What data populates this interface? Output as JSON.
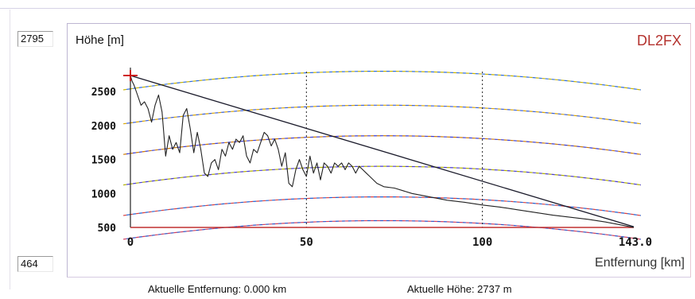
{
  "y_max_box": "2795",
  "y_min_box": "464",
  "status": {
    "distance_text": "Aktuelle Entfernung: 0.000 km",
    "height_text": "Aktuelle Höhe: 2737 m"
  },
  "chart_data": {
    "type": "line",
    "title": "DL2FX",
    "ylabel": "Höhe [m]",
    "xlabel": "Entfernung [km]",
    "xlim": [
      0,
      143
    ],
    "ylim": [
      500,
      2795
    ],
    "xticks": [
      {
        "value": 0,
        "label": "0"
      },
      {
        "value": 50,
        "label": "50"
      },
      {
        "value": 100,
        "label": "100"
      },
      {
        "value": 143,
        "label": "143.0"
      }
    ],
    "yticks": [
      {
        "value": 500,
        "label": "500"
      },
      {
        "value": 1000,
        "label": "1000"
      },
      {
        "value": 1500,
        "label": "1500"
      },
      {
        "value": 2000,
        "label": "2000"
      },
      {
        "value": 2500,
        "label": "2500"
      }
    ],
    "vertical_gridlines_x": [
      50,
      100
    ],
    "start_marker": {
      "x": 0,
      "y": 2737,
      "color": "#cc1111"
    },
    "series": [
      {
        "style": "terrain",
        "color": "#222222",
        "x": [
          0,
          0.5,
          1,
          2,
          3,
          4,
          5,
          6,
          7,
          8,
          9,
          10,
          11,
          12,
          13,
          14,
          15,
          16,
          17,
          18,
          19,
          20,
          21,
          22,
          23,
          24,
          25,
          26,
          27,
          28,
          29,
          30,
          31,
          32,
          33,
          34,
          35,
          36,
          37,
          38,
          39,
          40,
          41,
          42,
          43,
          44,
          45,
          46,
          47,
          48,
          49,
          50,
          51,
          52,
          53,
          54,
          55,
          56,
          57,
          58,
          59,
          60,
          61,
          62,
          63,
          64,
          65,
          66,
          67,
          68,
          70,
          72,
          75,
          80,
          85,
          90,
          95,
          100,
          105,
          110,
          115,
          120,
          125,
          130,
          135,
          138,
          141,
          143
        ],
        "y": [
          2737,
          2650,
          2600,
          2450,
          2300,
          2350,
          2250,
          2050,
          2300,
          2450,
          2200,
          1550,
          1850,
          1650,
          1750,
          1600,
          2150,
          2250,
          1950,
          1600,
          1900,
          1650,
          1300,
          1250,
          1450,
          1500,
          1350,
          1650,
          1550,
          1750,
          1650,
          1800,
          1750,
          1850,
          1550,
          1450,
          1650,
          1600,
          1750,
          1900,
          1850,
          1700,
          1800,
          1650,
          1400,
          1600,
          1150,
          1100,
          1350,
          1500,
          1350,
          1250,
          1550,
          1300,
          1450,
          1200,
          1450,
          1400,
          1300,
          1450,
          1400,
          1450,
          1350,
          1450,
          1400,
          1300,
          1400,
          1350,
          1300,
          1250,
          1150,
          1100,
          1080,
          1000,
          950,
          900,
          870,
          830,
          800,
          760,
          720,
          680,
          650,
          620,
          580,
          550,
          520,
          500
        ]
      },
      {
        "style": "sightline",
        "color": "#1a1a2a",
        "x": [
          0,
          143
        ],
        "y": [
          2737,
          510
        ]
      }
    ],
    "curvature_arcs": [
      {
        "peak": 2800,
        "color_a": "#c8b400",
        "color_b": "#2d6be0"
      },
      {
        "peak": 2300,
        "color_a": "#d9a400",
        "color_b": "#3a5fd8"
      },
      {
        "peak": 1850,
        "color_a": "#cc7a00",
        "color_b": "#3a3ad0"
      },
      {
        "peak": 1400,
        "color_a": "#b0b000",
        "color_b": "#4a3ad0"
      },
      {
        "peak": 950,
        "color_a": "#d84040",
        "color_b": "#2060d0"
      },
      {
        "peak": 600,
        "color_a": "#d04060",
        "color_b": "#3050c0"
      }
    ]
  }
}
